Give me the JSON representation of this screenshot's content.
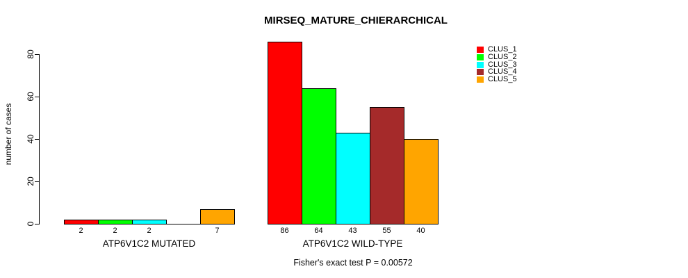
{
  "chart_data": {
    "type": "bar",
    "title": "MIRSEQ_MATURE_CHIERARCHICAL",
    "ylabel": "number of cases",
    "xlabel": "",
    "yticks": [
      0,
      20,
      40,
      60,
      80
    ],
    "ylim": [
      0,
      86
    ],
    "grid": false,
    "legend_position": "top-right",
    "legend": [
      {
        "label": "CLUS_1",
        "color": "#FF0000"
      },
      {
        "label": "CLUS_2",
        "color": "#00FF00"
      },
      {
        "label": "CLUS_3",
        "color": "#00FFFF"
      },
      {
        "label": "CLUS_4",
        "color": "#A52A2A"
      },
      {
        "label": "CLUS_5",
        "color": "#FFA500"
      }
    ],
    "series_colors": [
      "#FF0000",
      "#00FF00",
      "#00FFFF",
      "#A52A2A",
      "#FFA500"
    ],
    "groups": [
      {
        "label": "ATP6V1C2 MUTATED",
        "values": [
          2,
          2,
          2,
          0,
          7
        ],
        "bar_labels": [
          "2",
          "2",
          "2",
          "",
          "7"
        ]
      },
      {
        "label": "ATP6V1C2 WILD-TYPE",
        "values": [
          86,
          64,
          43,
          55,
          40
        ],
        "bar_labels": [
          "86",
          "64",
          "43",
          "55",
          "40"
        ]
      }
    ],
    "footer": "Fisher's exact test P = 0.00572"
  }
}
